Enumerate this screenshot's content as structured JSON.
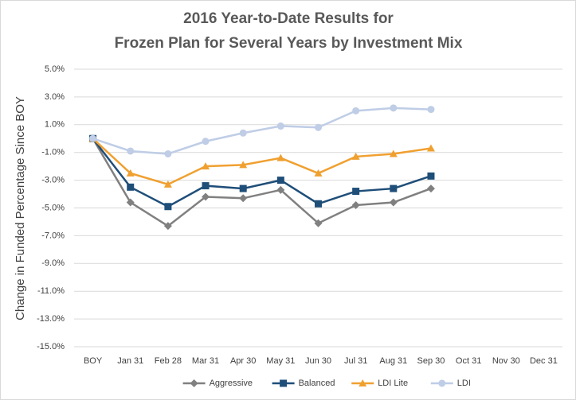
{
  "chart_data": {
    "type": "line",
    "title": [
      "2016 Year-to-Date Results for",
      "Frozen Plan for Several Years by Investment Mix"
    ],
    "y_label": "Change in Funded Percentage Since BOY",
    "categories": [
      "BOY",
      "Jan 31",
      "Feb 28",
      "Mar 31",
      "Apr 30",
      "May 31",
      "Jun 30",
      "Jul 31",
      "Aug 31",
      "Sep 30",
      "Oct 31",
      "Nov 30",
      "Dec 31"
    ],
    "series": [
      {
        "name": "Aggressive",
        "color": "#808080",
        "marker": "diamond",
        "values": [
          0,
          -4.6,
          -6.3,
          -4.2,
          -4.3,
          -3.7,
          -6.1,
          -4.8,
          -4.6,
          -3.6,
          null,
          null,
          null
        ]
      },
      {
        "name": "Balanced",
        "color": "#1f4e79",
        "marker": "square",
        "values": [
          0,
          -3.5,
          -4.9,
          -3.4,
          -3.6,
          -3.0,
          -4.7,
          -3.8,
          -3.6,
          -2.7,
          null,
          null,
          null
        ]
      },
      {
        "name": "LDI Lite",
        "color": "#f0a030",
        "marker": "triangle",
        "values": [
          0,
          -2.5,
          -3.3,
          -2.0,
          -1.9,
          -1.4,
          -2.5,
          -1.3,
          -1.1,
          -0.7,
          null,
          null,
          null
        ]
      },
      {
        "name": "LDI",
        "color": "#bfcde6",
        "marker": "circle",
        "values": [
          0,
          -0.9,
          -1.1,
          -0.2,
          0.4,
          0.9,
          0.8,
          2.0,
          2.2,
          2.1,
          null,
          null,
          null
        ]
      }
    ],
    "ylim": [
      -15,
      5
    ],
    "yticks": [
      {
        "value": 5,
        "label": "5.0%"
      },
      {
        "value": 3,
        "label": "3.0%"
      },
      {
        "value": 1,
        "label": "1.0%"
      },
      {
        "value": -1,
        "label": "-1.0%"
      },
      {
        "value": -3,
        "label": "-3.0%"
      },
      {
        "value": -5,
        "label": "-5.0%"
      },
      {
        "value": -7,
        "label": "-7.0%"
      },
      {
        "value": -9,
        "label": "-9.0%"
      },
      {
        "value": -11,
        "label": "-11.0%"
      },
      {
        "value": -13,
        "label": "-13.0%"
      },
      {
        "value": -15,
        "label": "-15.0%"
      }
    ],
    "grid": true,
    "legend": "bottom"
  }
}
